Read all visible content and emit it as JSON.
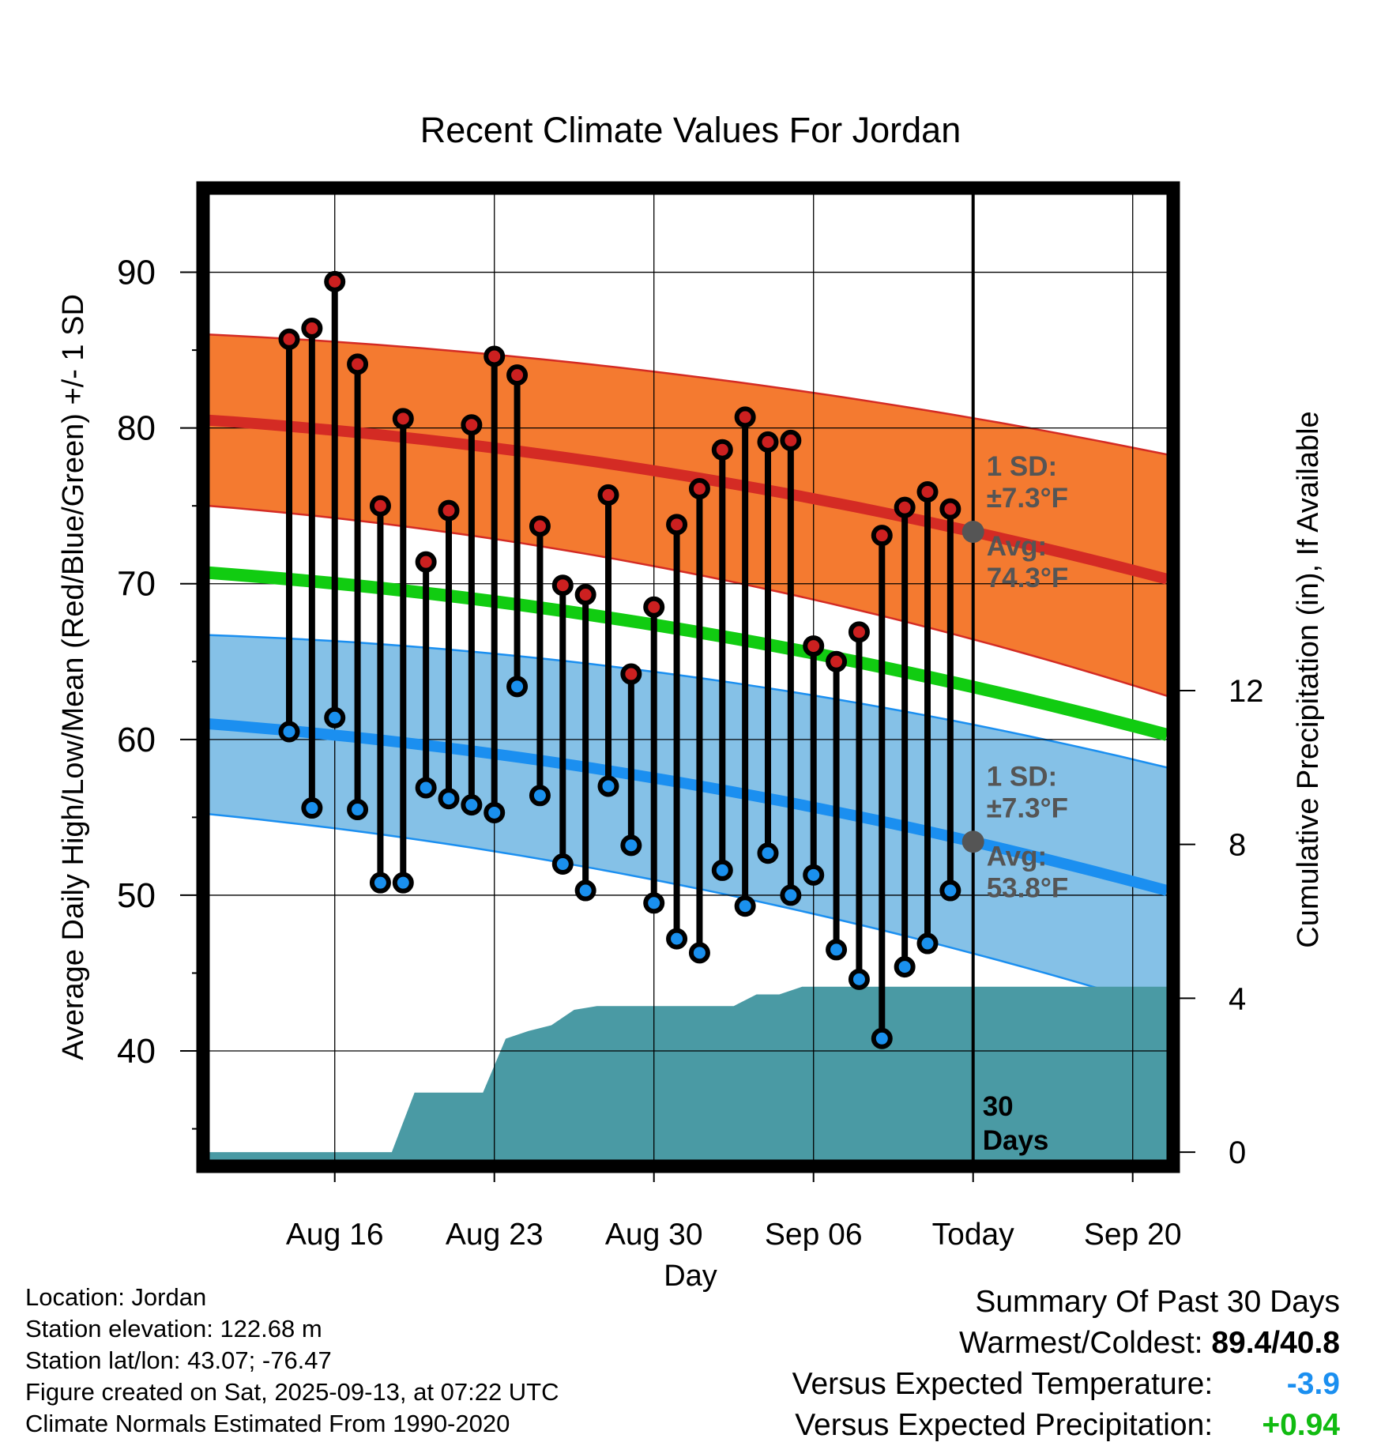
{
  "chart_data": {
    "type": "climate-range",
    "title": "Recent Climate Values For Jordan",
    "xlabel": "Day",
    "ylabel_left": "Average Daily High/Low/Mean (Red/Blue/Green) +/- 1 SD",
    "ylabel_right": "Cumulative Precipitation (in), If Available",
    "x_range_days": [
      -33.5,
      8.5
    ],
    "x_ticks": [
      {
        "day": -28,
        "label": "Aug 16"
      },
      {
        "day": -21,
        "label": "Aug 23"
      },
      {
        "day": -14,
        "label": "Aug 30"
      },
      {
        "day": -7,
        "label": "Sep 06"
      },
      {
        "day": 0,
        "label": "Today"
      },
      {
        "day": 7,
        "label": "Sep 20"
      }
    ],
    "y_left_range": [
      33,
      95
    ],
    "y_left_ticks": [
      40,
      50,
      60,
      70,
      80,
      90
    ],
    "y_left_minor_ticks": [
      35,
      45,
      55,
      65,
      75,
      85
    ],
    "y_right_scale": {
      "left_value_at_zero": 33.5,
      "left_units_per_inch": 2.47
    },
    "y_right_ticks": [
      0,
      4,
      8,
      12
    ],
    "normals": {
      "days": [
        -33.5,
        8.5
      ],
      "high_avg": [
        80.5,
        70.3
      ],
      "high_upper": [
        86.0,
        78.3
      ],
      "high_lower": [
        75.0,
        62.8
      ],
      "low_avg": [
        61.0,
        50.3
      ],
      "low_upper": [
        66.7,
        58.2
      ],
      "low_lower": [
        55.2,
        42.7
      ],
      "mean_avg": [
        70.7,
        60.3
      ]
    },
    "daily_highs": [
      85.7,
      86.4,
      89.4,
      84.1,
      75.0,
      80.6,
      71.4,
      74.7,
      80.2,
      84.6,
      83.4,
      73.7,
      69.9,
      69.3,
      75.7,
      64.2,
      68.5,
      73.8,
      76.1,
      78.6,
      80.7,
      79.1,
      79.2,
      66.0,
      65.0,
      66.9,
      73.1,
      74.9,
      75.9,
      74.8
    ],
    "daily_lows": [
      60.5,
      55.6,
      61.4,
      55.5,
      50.8,
      50.8,
      56.9,
      56.2,
      55.8,
      55.3,
      63.4,
      56.4,
      52.0,
      50.3,
      57.0,
      53.2,
      49.5,
      47.2,
      46.3,
      51.6,
      49.3,
      52.7,
      50.0,
      51.3,
      46.5,
      44.6,
      40.8,
      45.4,
      46.9,
      50.3
    ],
    "precip_cumulative": [
      {
        "day": -34.5,
        "value": 0
      },
      {
        "day": -25.5,
        "value": 0
      },
      {
        "day": -24.5,
        "value": 1.55
      },
      {
        "day": -21.5,
        "value": 1.55
      },
      {
        "day": -20.5,
        "value": 2.95
      },
      {
        "day": -19.5,
        "value": 3.15
      },
      {
        "day": -18.5,
        "value": 3.3
      },
      {
        "day": -17.5,
        "value": 3.7
      },
      {
        "day": -16.5,
        "value": 3.8
      },
      {
        "day": -10.5,
        "value": 3.8
      },
      {
        "day": -9.5,
        "value": 4.1
      },
      {
        "day": -8.5,
        "value": 4.1
      },
      {
        "day": -7.5,
        "value": 4.3
      },
      {
        "day": 8.5,
        "value": 4.3
      }
    ],
    "annotations": {
      "high_sd_label_1": "1 SD:",
      "high_sd_label_2": "±7.3°F",
      "high_avg_label_1": "Avg:",
      "high_avg_label_2": "74.3°F",
      "high_avg_today": 74.3,
      "low_sd_label_1": "1 SD:",
      "low_sd_label_2": "±7.3°F",
      "low_avg_label_1": "Avg:",
      "low_avg_label_2": "53.8°F",
      "low_avg_today": 53.8,
      "days_label_1": "30",
      "days_label_2": "Days"
    },
    "colors": {
      "high_band": "#f47a30",
      "high_line": "#d42b24",
      "low_band": "#85c1e7",
      "low_line": "#1b8ff0",
      "mean_line": "#11cc11",
      "precip": "#4a9aa4",
      "high_marker": "#cc2020",
      "low_marker": "#1a90ee",
      "annotation": "#555555"
    }
  },
  "info": {
    "location": "Location: Jordan",
    "elevation": "Station elevation: 122.68 m",
    "latlon": "Station lat/lon: 43.07; -76.47",
    "created": "Figure created on Sat, 2025-09-13, at 07:22 UTC",
    "normals": "Climate Normals Estimated From 1990-2020"
  },
  "summary": {
    "title": "Summary Of Past 30 Days",
    "warm_cold_label": "Warmest/Coldest:",
    "warm_cold_value": "89.4/40.8",
    "temp_label": "Versus Expected Temperature:",
    "temp_value": "-3.9",
    "temp_color": "#1b8ff0",
    "precip_label": "Versus Expected Precipitation:",
    "precip_value": "+0.94",
    "precip_color": "#11bb11"
  }
}
